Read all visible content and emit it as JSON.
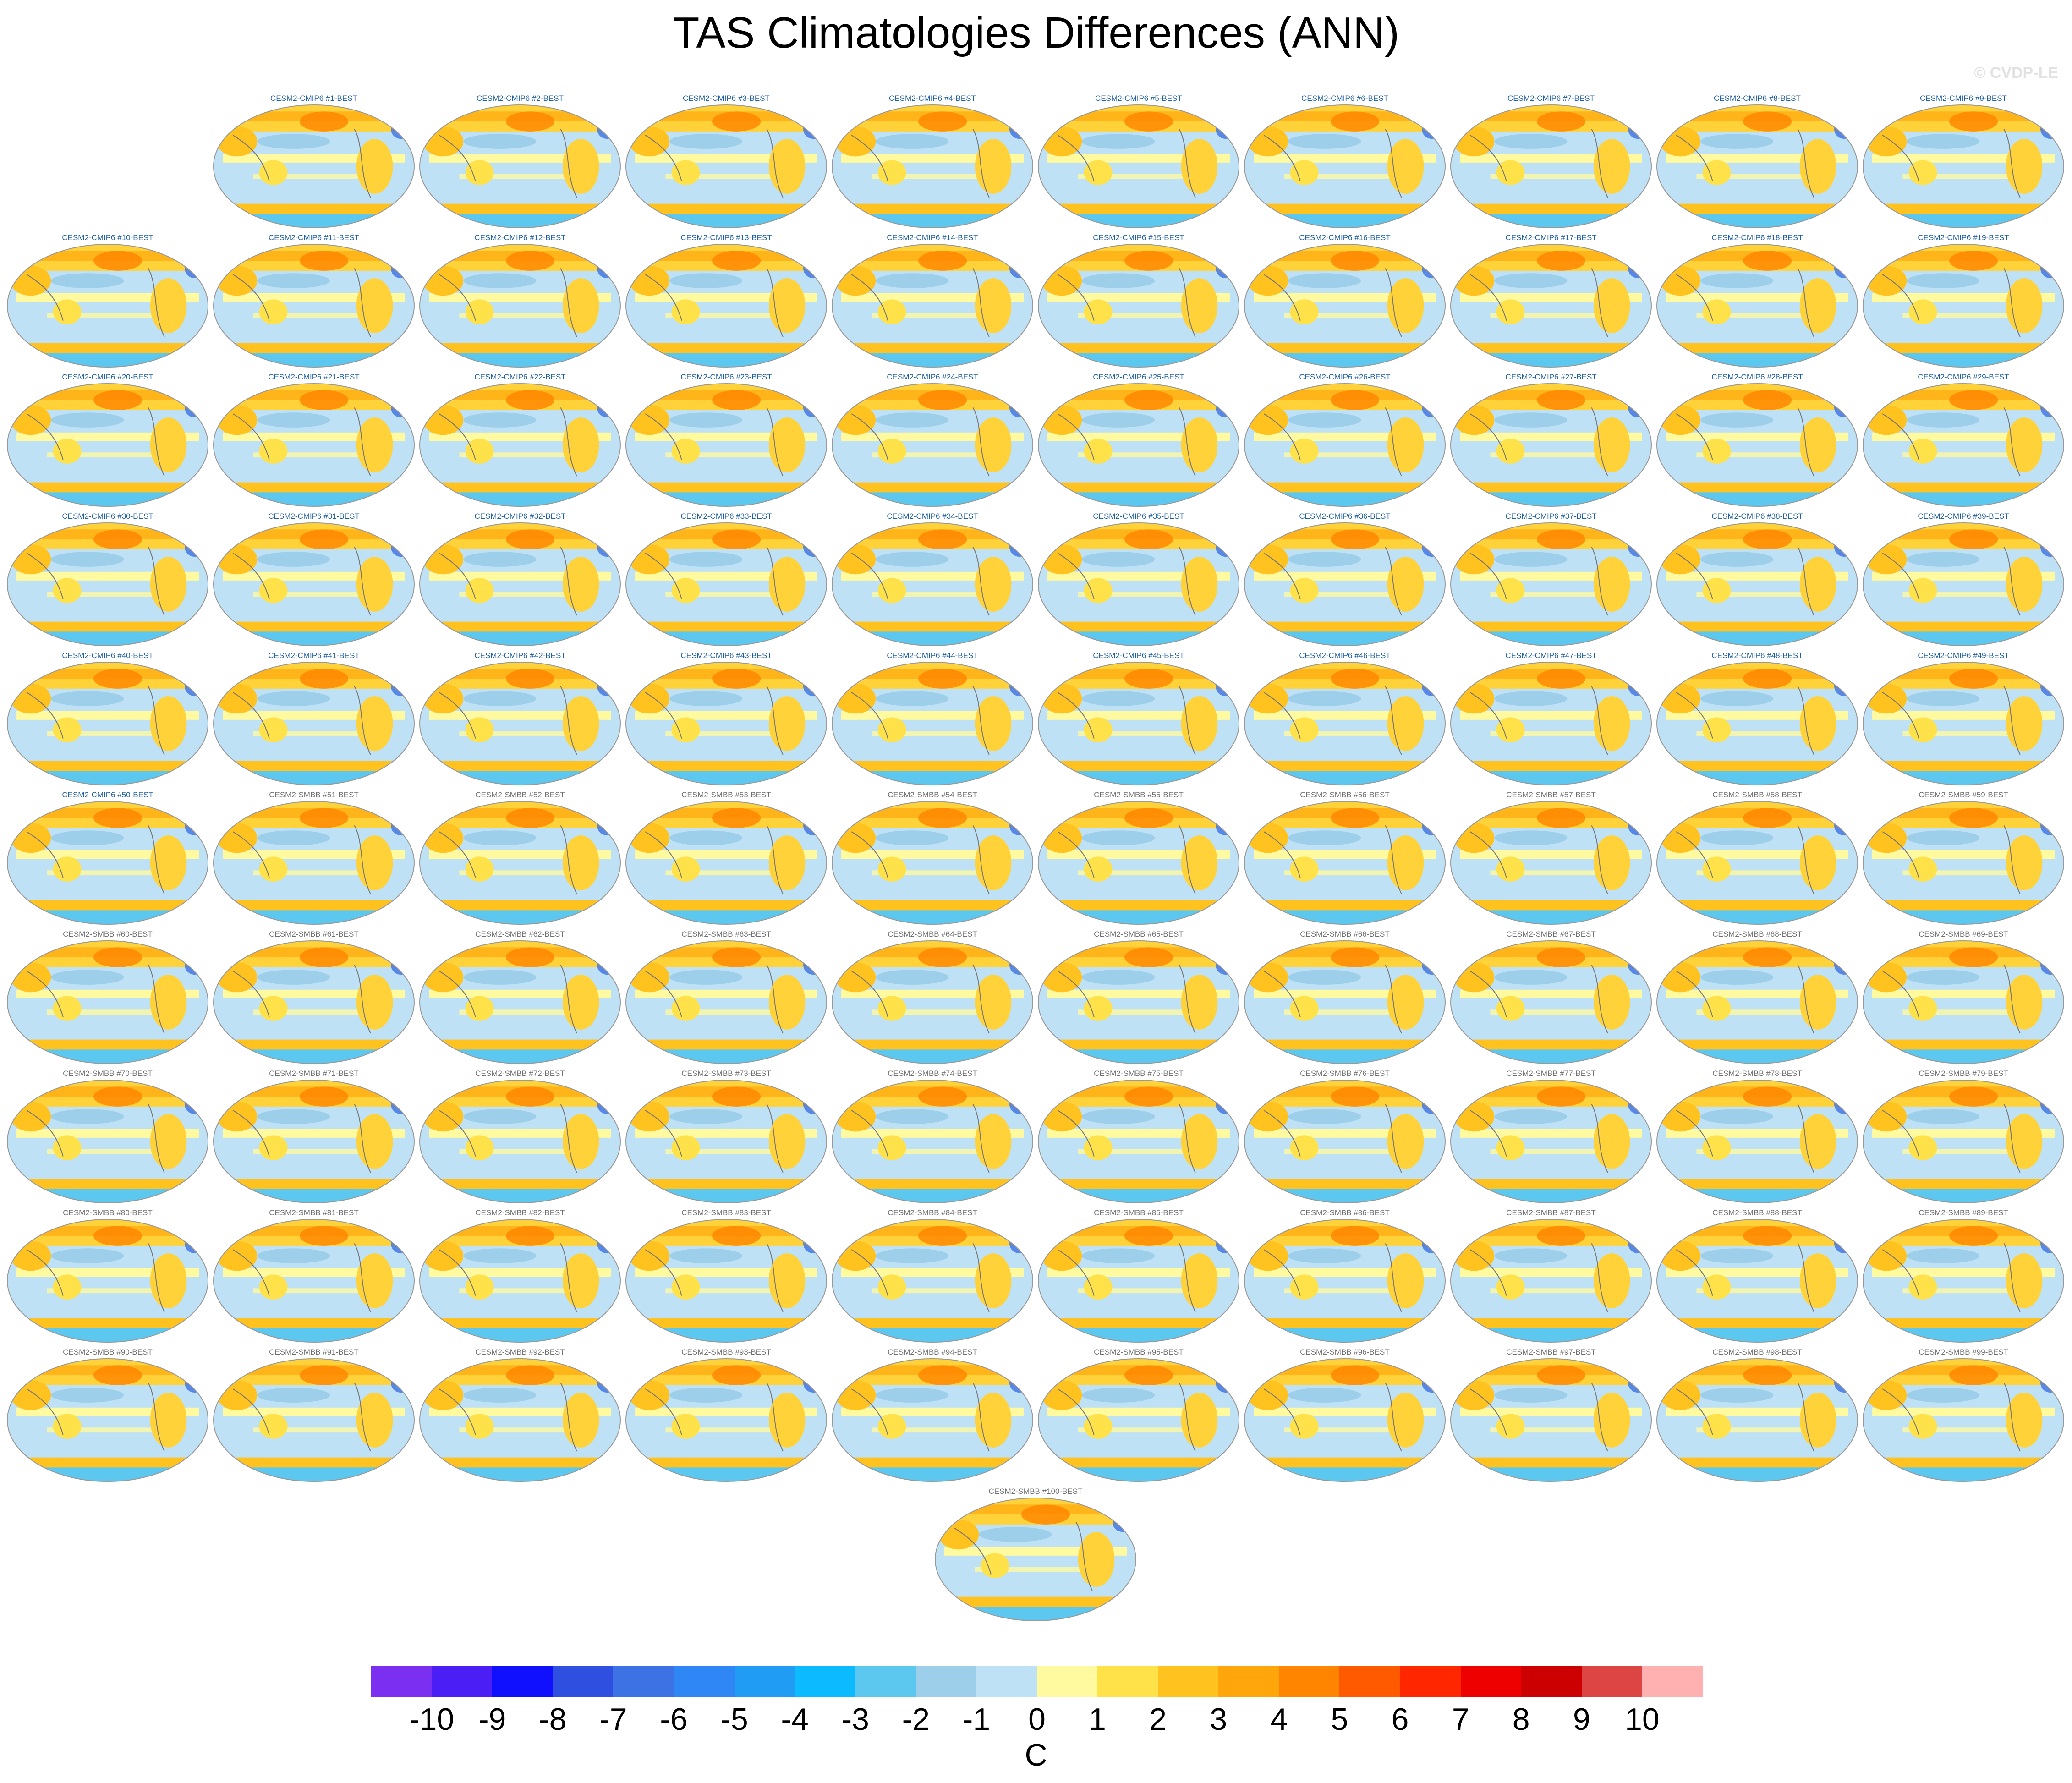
{
  "title": "TAS Climatologies Differences (ANN)",
  "watermark": "© CVDP-LE",
  "units": "C",
  "panels": [
    "CESM2-CMIP6 #1-BEST",
    "CESM2-CMIP6 #2-BEST",
    "CESM2-CMIP6 #3-BEST",
    "CESM2-CMIP6 #4-BEST",
    "CESM2-CMIP6 #5-BEST",
    "CESM2-CMIP6 #6-BEST",
    "CESM2-CMIP6 #7-BEST",
    "CESM2-CMIP6 #8-BEST",
    "CESM2-CMIP6 #9-BEST",
    "CESM2-CMIP6 #10-BEST",
    "CESM2-CMIP6 #11-BEST",
    "CESM2-CMIP6 #12-BEST",
    "CESM2-CMIP6 #13-BEST",
    "CESM2-CMIP6 #14-BEST",
    "CESM2-CMIP6 #15-BEST",
    "CESM2-CMIP6 #16-BEST",
    "CESM2-CMIP6 #17-BEST",
    "CESM2-CMIP6 #18-BEST",
    "CESM2-CMIP6 #19-BEST",
    "CESM2-CMIP6 #20-BEST",
    "CESM2-CMIP6 #21-BEST",
    "CESM2-CMIP6 #22-BEST",
    "CESM2-CMIP6 #23-BEST",
    "CESM2-CMIP6 #24-BEST",
    "CESM2-CMIP6 #25-BEST",
    "CESM2-CMIP6 #26-BEST",
    "CESM2-CMIP6 #27-BEST",
    "CESM2-CMIP6 #28-BEST",
    "CESM2-CMIP6 #29-BEST",
    "CESM2-CMIP6 #30-BEST",
    "CESM2-CMIP6 #31-BEST",
    "CESM2-CMIP6 #32-BEST",
    "CESM2-CMIP6 #33-BEST",
    "CESM2-CMIP6 #34-BEST",
    "CESM2-CMIP6 #35-BEST",
    "CESM2-CMIP6 #36-BEST",
    "CESM2-CMIP6 #37-BEST",
    "CESM2-CMIP6 #38-BEST",
    "CESM2-CMIP6 #39-BEST",
    "CESM2-CMIP6 #40-BEST",
    "CESM2-CMIP6 #41-BEST",
    "CESM2-CMIP6 #42-BEST",
    "CESM2-CMIP6 #43-BEST",
    "CESM2-CMIP6 #44-BEST",
    "CESM2-CMIP6 #45-BEST",
    "CESM2-CMIP6 #46-BEST",
    "CESM2-CMIP6 #47-BEST",
    "CESM2-CMIP6 #48-BEST",
    "CESM2-CMIP6 #49-BEST",
    "CESM2-CMIP6 #50-BEST",
    "CESM2-SMBB #51-BEST",
    "CESM2-SMBB #52-BEST",
    "CESM2-SMBB #53-BEST",
    "CESM2-SMBB #54-BEST",
    "CESM2-SMBB #55-BEST",
    "CESM2-SMBB #56-BEST",
    "CESM2-SMBB #57-BEST",
    "CESM2-SMBB #58-BEST",
    "CESM2-SMBB #59-BEST",
    "CESM2-SMBB #60-BEST",
    "CESM2-SMBB #61-BEST",
    "CESM2-SMBB #62-BEST",
    "CESM2-SMBB #63-BEST",
    "CESM2-SMBB #64-BEST",
    "CESM2-SMBB #65-BEST",
    "CESM2-SMBB #66-BEST",
    "CESM2-SMBB #67-BEST",
    "CESM2-SMBB #68-BEST",
    "CESM2-SMBB #69-BEST",
    "CESM2-SMBB #70-BEST",
    "CESM2-SMBB #71-BEST",
    "CESM2-SMBB #72-BEST",
    "CESM2-SMBB #73-BEST",
    "CESM2-SMBB #74-BEST",
    "CESM2-SMBB #75-BEST",
    "CESM2-SMBB #76-BEST",
    "CESM2-SMBB #77-BEST",
    "CESM2-SMBB #78-BEST",
    "CESM2-SMBB #79-BEST",
    "CESM2-SMBB #80-BEST",
    "CESM2-SMBB #81-BEST",
    "CESM2-SMBB #82-BEST",
    "CESM2-SMBB #83-BEST",
    "CESM2-SMBB #84-BEST",
    "CESM2-SMBB #85-BEST",
    "CESM2-SMBB #86-BEST",
    "CESM2-SMBB #87-BEST",
    "CESM2-SMBB #88-BEST",
    "CESM2-SMBB #89-BEST",
    "CESM2-SMBB #90-BEST",
    "CESM2-SMBB #91-BEST",
    "CESM2-SMBB #92-BEST",
    "CESM2-SMBB #93-BEST",
    "CESM2-SMBB #94-BEST",
    "CESM2-SMBB #95-BEST",
    "CESM2-SMBB #96-BEST",
    "CESM2-SMBB #97-BEST",
    "CESM2-SMBB #98-BEST",
    "CESM2-SMBB #99-BEST",
    "CESM2-SMBB #100-BEST"
  ],
  "colorbar": {
    "colors": [
      "#7b2ff0",
      "#4b1ef5",
      "#1010ff",
      "#2f4fe0",
      "#3d72e4",
      "#2f87f5",
      "#209cf5",
      "#0cbaff",
      "#5cc8f0",
      "#9dcfea",
      "#bfe1f6",
      "#fffaa0",
      "#ffe14a",
      "#ffc21e",
      "#ffa60c",
      "#ff8400",
      "#ff5a00",
      "#ff2600",
      "#ee0000",
      "#cc0000",
      "#dd4444",
      "#ffb0b0"
    ],
    "labels": [
      "-10",
      "-9",
      "-8",
      "-7",
      "-6",
      "-5",
      "-4",
      "-3",
      "-2",
      "-1",
      "0",
      "1",
      "2",
      "3",
      "4",
      "5",
      "6",
      "7",
      "8",
      "9",
      "10"
    ]
  }
}
